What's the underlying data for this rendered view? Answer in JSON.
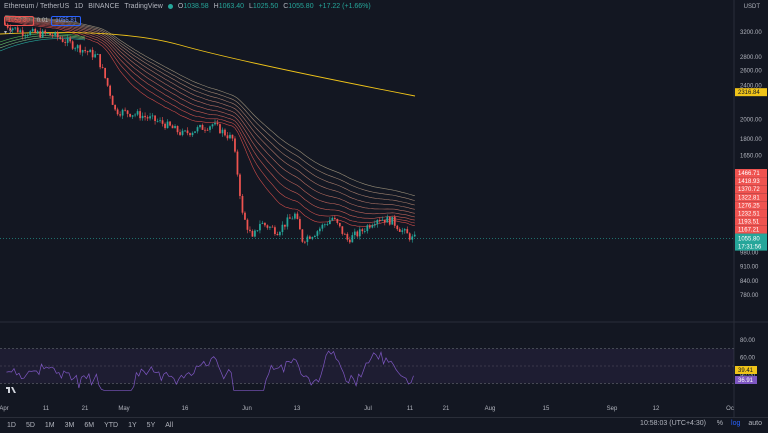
{
  "header": {
    "symbol": "Ethereum / TetherUS",
    "interval": "1D",
    "exchange": "BINANCE",
    "source": "TradingView",
    "open_label": "O",
    "open": "1038.58",
    "high_label": "H",
    "high": "1063.40",
    "low_label": "L",
    "low": "1025.50",
    "close_label": "C",
    "close": "1055.80",
    "change": "+17.22 (+1.66%)",
    "status_color": "#26a69a"
  },
  "trade_tags": {
    "sell": "1055.80",
    "spread": "0.01",
    "buy": "1055.81"
  },
  "indicator_label": "2",
  "currency": "USDT",
  "chart_data": {
    "type": "candlestick",
    "price_scale": {
      "ticks": [
        3200,
        2800,
        2600,
        2400,
        2000,
        1800,
        1650,
        980,
        910,
        840,
        780
      ],
      "tick_labels": [
        "3200.00",
        "2800.00",
        "2600.00",
        "2400.00",
        "2000.00",
        "1800.00",
        "1650.00",
        "980.00",
        "910.00",
        "840.00",
        "780.00"
      ],
      "log": true
    },
    "ma_labels": [
      "2316.84",
      "1466.71",
      "1418.93",
      "1370.72",
      "1322.81",
      "1276.25",
      "1232.51",
      "1193.51",
      "1167.21"
    ],
    "last_price": "1055.80",
    "countdown": "17:31:56",
    "rsi": {
      "ticks": [
        "80.00",
        "60.00",
        "40.00"
      ],
      "ticks_values": [
        80,
        60,
        40
      ],
      "value": "36.91",
      "ma": "39.41",
      "upper": 70,
      "lower": 30
    },
    "x_labels": [
      "Apr",
      "11",
      "21",
      "May",
      "16",
      "Jun",
      "13",
      "Jul",
      "11",
      "21",
      "Aug",
      "15",
      "Sep",
      "12",
      "Oc"
    ]
  },
  "bottom_bar": {
    "timeframes": [
      "1D",
      "5D",
      "1M",
      "3M",
      "6M",
      "YTD",
      "1Y",
      "5Y",
      "All"
    ],
    "time": "10:58:03 (UTC+4:30)",
    "percent": "%",
    "log": "log",
    "auto": "auto"
  },
  "colors": {
    "up": "#26a69a",
    "down": "#ef5350",
    "ma200": "#f0c419",
    "rsi": "#7e57c2"
  }
}
